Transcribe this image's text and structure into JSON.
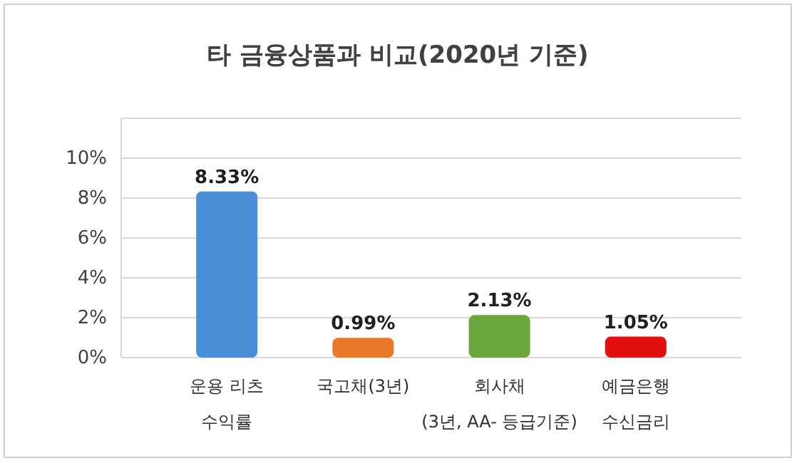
{
  "chart_data": {
    "type": "bar",
    "title": "타 금융상품과 비교(2020년 기준)",
    "categories": [
      "운용 리츠\n수익률",
      "국고채(3년)",
      "회사채\n(3년, AA- 등급기준)",
      "예금은행\n수신금리"
    ],
    "values": [
      8.33,
      0.99,
      2.13,
      1.05
    ],
    "colors": [
      "#4a8fd8",
      "#e8782a",
      "#6aa83e",
      "#e01010"
    ],
    "value_labels": [
      "8.33%",
      "0.99%",
      "2.13%",
      "1.05%"
    ],
    "ylim": [
      0,
      12
    ],
    "yticks": [
      {
        "value": 0,
        "label": "0%"
      },
      {
        "value": 2,
        "label": "2%"
      },
      {
        "value": 4,
        "label": "4%"
      },
      {
        "value": 6,
        "label": "6%"
      },
      {
        "value": 8,
        "label": "8%"
      },
      {
        "value": 10,
        "label": "10%"
      },
      {
        "value": 12,
        "label": null
      }
    ],
    "grid": "y"
  }
}
